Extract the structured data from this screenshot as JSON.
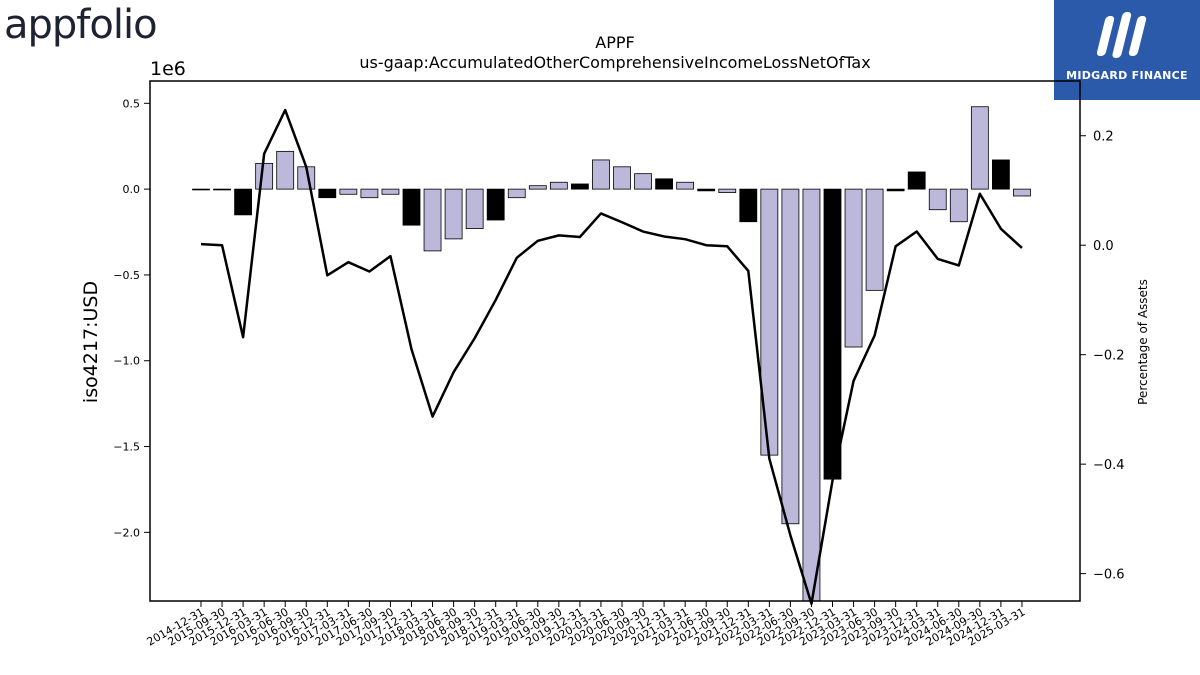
{
  "logos": {
    "left_text": "appfolio",
    "left_color": "#1e2334",
    "right_text": "MIDGARD FINANCE",
    "right_bg": "#2c5aab"
  },
  "chart_data": {
    "type": "bar",
    "title": "APPF",
    "subtitle": "us-gaap:AccumulatedOtherComprehensiveIncomeLossNetOfTax",
    "ylabel": "iso4217:USD",
    "y_multiplier_label": "1e6",
    "y2label": "Percentage of Assets",
    "ylim": [
      -2.4,
      0.63
    ],
    "y2lim": [
      -0.65,
      0.3
    ],
    "yticks": [
      0.5,
      0.0,
      -0.5,
      -1.0,
      -1.5,
      -2.0
    ],
    "ytick_labels": [
      "0.5",
      "0.0",
      "−0.5",
      "−1.0",
      "−1.5",
      "−2.0"
    ],
    "y2ticks": [
      0.2,
      0.0,
      -0.2,
      -0.4,
      -0.6
    ],
    "y2tick_labels": [
      "0.2",
      "0.0",
      "−0.2",
      "−0.4",
      "−0.6"
    ],
    "grid": false,
    "bar_color_default": "#bcb8da",
    "bar_color_highlight": "#000000",
    "line_color": "#000000",
    "categories": [
      "2014-12-31",
      "2015-09-30",
      "2015-12-31",
      "2016-03-31",
      "2016-06-30",
      "2016-09-30",
      "2016-12-31",
      "2017-03-31",
      "2017-06-30",
      "2017-09-30",
      "2017-12-31",
      "2018-03-31",
      "2018-06-30",
      "2018-09-30",
      "2018-12-31",
      "2019-03-31",
      "2019-06-30",
      "2019-09-30",
      "2019-12-31",
      "2020-03-31",
      "2020-06-30",
      "2020-09-30",
      "2020-12-31",
      "2021-03-31",
      "2021-06-30",
      "2021-09-30",
      "2021-12-31",
      "2022-03-31",
      "2022-06-30",
      "2022-09-30",
      "2022-12-31",
      "2023-03-31",
      "2023-06-30",
      "2023-09-30",
      "2023-12-31",
      "2024-03-31",
      "2024-06-30",
      "2024-09-30",
      "2024-12-31",
      "2025-03-31"
    ],
    "series": [
      {
        "kind": "bar",
        "values": [
          0.0,
          0.0,
          -0.15,
          0.15,
          0.22,
          0.13,
          -0.05,
          -0.03,
          -0.05,
          -0.03,
          -0.21,
          -0.36,
          -0.29,
          -0.23,
          -0.18,
          -0.05,
          0.02,
          0.04,
          0.03,
          0.17,
          0.13,
          0.09,
          0.06,
          0.04,
          -0.01,
          -0.02,
          -0.19,
          -1.55,
          -1.95,
          -2.4,
          -1.69,
          -0.92,
          -0.59,
          -0.01,
          0.1,
          -0.12,
          -0.19,
          0.48,
          0.17,
          -0.04
        ],
        "highlight": [
          0,
          0,
          1,
          0,
          0,
          0,
          1,
          0,
          0,
          0,
          1,
          0,
          0,
          0,
          1,
          0,
          0,
          0,
          1,
          0,
          0,
          0,
          1,
          0,
          1,
          0,
          1,
          0,
          0,
          0,
          1,
          0,
          0,
          1,
          1,
          0,
          0,
          0,
          1,
          0
        ]
      },
      {
        "kind": "line",
        "axis": "right",
        "values": [
          0.002,
          0.0,
          -0.168,
          0.167,
          0.247,
          0.143,
          -0.055,
          -0.031,
          -0.048,
          -0.02,
          -0.19,
          -0.313,
          -0.232,
          -0.17,
          -0.1,
          -0.023,
          0.008,
          0.018,
          0.015,
          0.058,
          0.042,
          0.025,
          0.016,
          0.011,
          0.0,
          -0.002,
          -0.047,
          -0.39,
          -0.53,
          -0.655,
          -0.43,
          -0.248,
          -0.165,
          -0.002,
          0.025,
          -0.025,
          -0.037,
          0.094,
          0.03,
          -0.005
        ]
      }
    ]
  }
}
